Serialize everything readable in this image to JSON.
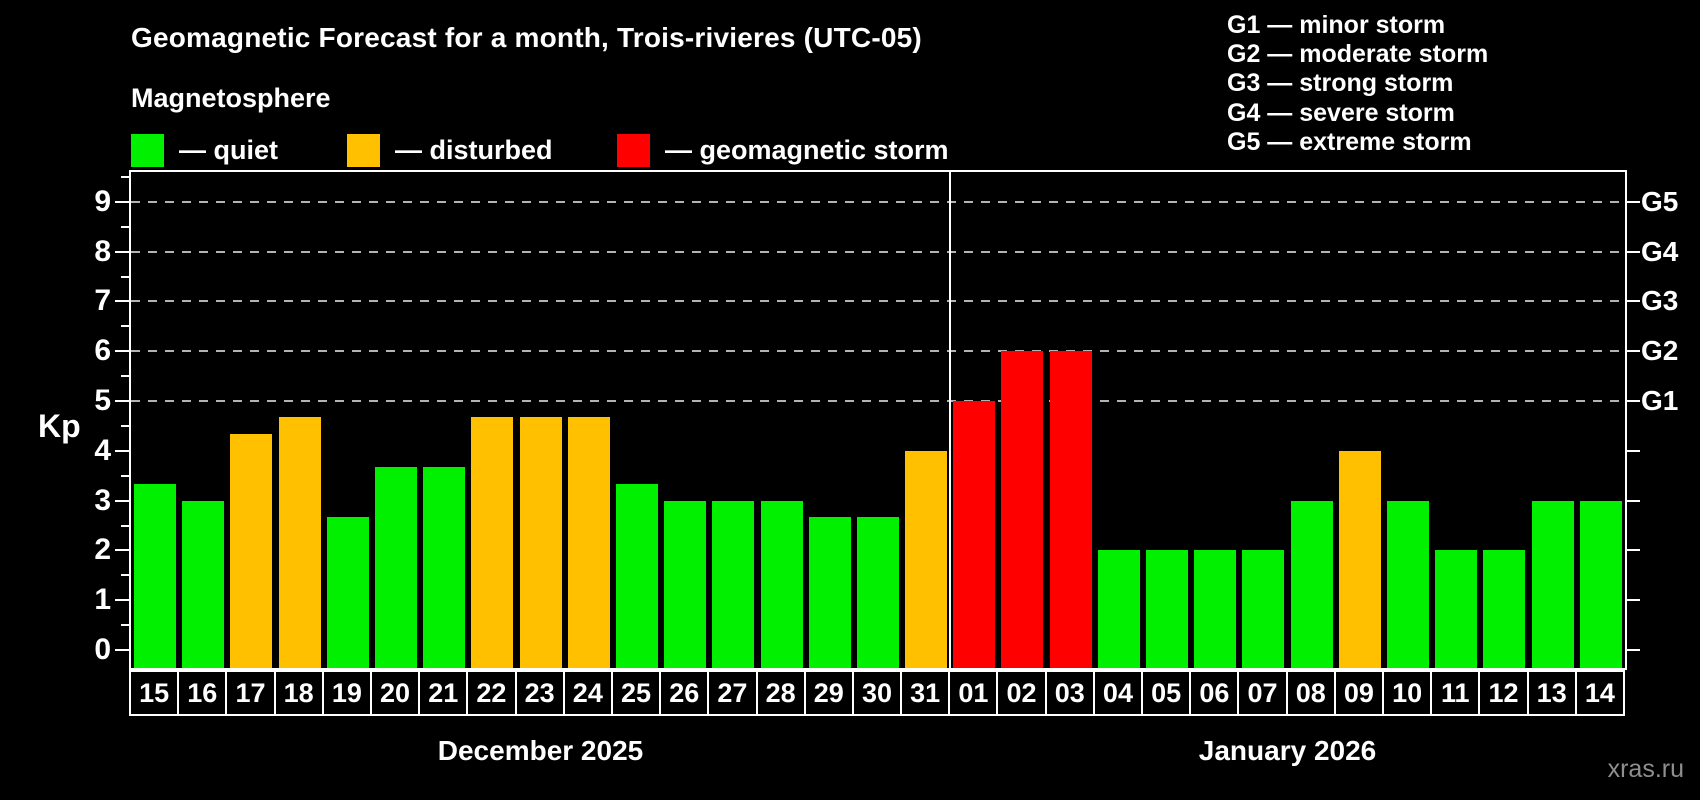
{
  "header": {
    "title": "Geomagnetic Forecast for a month, Trois-rivieres (UTC-05)",
    "subtitle": "Magnetosphere"
  },
  "legend": {
    "items": [
      {
        "name": "quiet",
        "label": "— quiet",
        "color": "#00f000"
      },
      {
        "name": "disturbed",
        "label": "— disturbed",
        "color": "#ffc000"
      },
      {
        "name": "storm",
        "label": "— geomagnetic storm",
        "color": "#ff0000"
      }
    ]
  },
  "g_scale_legend": [
    "G1 — minor storm",
    "G2 — moderate storm",
    "G3 — strong storm",
    "G4 — severe storm",
    "G5 — extreme storm"
  ],
  "watermark": "xras.ru",
  "chart_data": {
    "type": "bar",
    "title": "Geomagnetic Forecast for a month, Trois-rivieres (UTC-05)",
    "ylabel": "Kp",
    "ylim": [
      -0.36,
      9.6
    ],
    "y_ticks": [
      0,
      1,
      2,
      3,
      4,
      5,
      6,
      7,
      8,
      9
    ],
    "minor_tick_step": 0.5,
    "gridlines_at": [
      5,
      6,
      7,
      8,
      9
    ],
    "grid_style": "dashed",
    "right_axis_labels": [
      {
        "label": "G1",
        "value": 5
      },
      {
        "label": "G2",
        "value": 6
      },
      {
        "label": "G3",
        "value": 7
      },
      {
        "label": "G4",
        "value": 8
      },
      {
        "label": "G5",
        "value": 9
      }
    ],
    "months": [
      {
        "label": "December 2025",
        "count": 17
      },
      {
        "label": "January 2026",
        "count": 14
      }
    ],
    "bars": [
      {
        "day": "15",
        "kp": 3.33,
        "status": "quiet"
      },
      {
        "day": "16",
        "kp": 3.0,
        "status": "quiet"
      },
      {
        "day": "17",
        "kp": 4.33,
        "status": "disturbed"
      },
      {
        "day": "18",
        "kp": 4.67,
        "status": "disturbed"
      },
      {
        "day": "19",
        "kp": 2.67,
        "status": "quiet"
      },
      {
        "day": "20",
        "kp": 3.67,
        "status": "quiet"
      },
      {
        "day": "21",
        "kp": 3.67,
        "status": "quiet"
      },
      {
        "day": "22",
        "kp": 4.67,
        "status": "disturbed"
      },
      {
        "day": "23",
        "kp": 4.67,
        "status": "disturbed"
      },
      {
        "day": "24",
        "kp": 4.67,
        "status": "disturbed"
      },
      {
        "day": "25",
        "kp": 3.33,
        "status": "quiet"
      },
      {
        "day": "26",
        "kp": 3.0,
        "status": "quiet"
      },
      {
        "day": "27",
        "kp": 3.0,
        "status": "quiet"
      },
      {
        "day": "28",
        "kp": 3.0,
        "status": "quiet"
      },
      {
        "day": "29",
        "kp": 2.67,
        "status": "quiet"
      },
      {
        "day": "30",
        "kp": 2.67,
        "status": "quiet"
      },
      {
        "day": "31",
        "kp": 4.0,
        "status": "disturbed"
      },
      {
        "day": "01",
        "kp": 5.0,
        "status": "storm"
      },
      {
        "day": "02",
        "kp": 6.0,
        "status": "storm"
      },
      {
        "day": "03",
        "kp": 6.0,
        "status": "storm"
      },
      {
        "day": "04",
        "kp": 2.0,
        "status": "quiet"
      },
      {
        "day": "05",
        "kp": 2.0,
        "status": "quiet"
      },
      {
        "day": "06",
        "kp": 2.0,
        "status": "quiet"
      },
      {
        "day": "07",
        "kp": 2.0,
        "status": "quiet"
      },
      {
        "day": "08",
        "kp": 3.0,
        "status": "quiet"
      },
      {
        "day": "09",
        "kp": 4.0,
        "status": "disturbed"
      },
      {
        "day": "10",
        "kp": 3.0,
        "status": "quiet"
      },
      {
        "day": "11",
        "kp": 2.0,
        "status": "quiet"
      },
      {
        "day": "12",
        "kp": 2.0,
        "status": "quiet"
      },
      {
        "day": "13",
        "kp": 3.0,
        "status": "quiet"
      },
      {
        "day": "14",
        "kp": 3.0,
        "status": "quiet"
      }
    ],
    "status_colors": {
      "quiet": "#00f000",
      "disturbed": "#ffc000",
      "storm": "#ff0000"
    }
  }
}
